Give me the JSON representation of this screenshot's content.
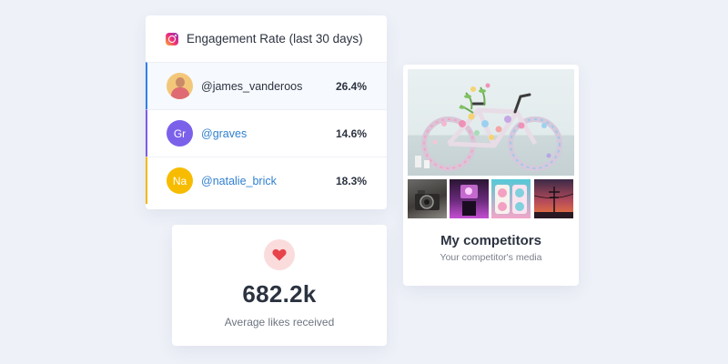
{
  "engagement": {
    "title": "Engagement Rate (last 30 days)",
    "icon": "instagram-icon",
    "rows": [
      {
        "handle": "@james_vanderoos",
        "rate": "26.4%",
        "avatar": "photo",
        "accent": "#2f80ed",
        "selected": true
      },
      {
        "initials": "Gr",
        "handle": "@graves",
        "rate": "14.6%",
        "avatar_color": "#7b61ea",
        "accent": "#7c5ce8"
      },
      {
        "initials": "Na",
        "handle": "@natalie_brick",
        "rate": "18.3%",
        "avatar_color": "#f7bc00",
        "accent": "#f5b800"
      }
    ]
  },
  "likes": {
    "icon": "heart-icon",
    "value": "682.2k",
    "label": "Average likes received"
  },
  "competitors": {
    "title": "My competitors",
    "subtitle": "Your competitor's media",
    "media": [
      "flower-bicycle-photo",
      "vintage-camera-photo",
      "neon-arcade-photo",
      "pastel-dials-photo",
      "sunset-powerline-photo"
    ]
  },
  "colors": {
    "background": "#eef1f8",
    "heart": "#e8434b",
    "link": "#2f7fd0"
  }
}
